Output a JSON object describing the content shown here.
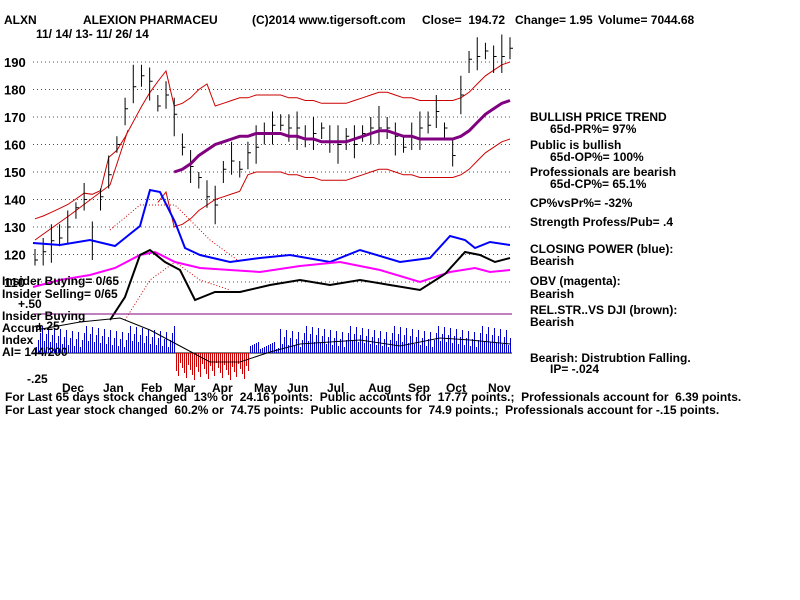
{
  "header": {
    "ticker": "ALXN",
    "company": "ALEXION PHARMACEU",
    "copyright": "(C)2014 www.tigersoft.com",
    "close": "Close=  194.72",
    "change": "Change= 1.95",
    "volume": "Volume= 7044.68",
    "date_range": "11/ 14/ 13- 11/ 26/ 14"
  },
  "right_panel": {
    "bullish_trend": "BULLISH PRICE TREND",
    "pr": "65d-PR%= 97%",
    "public_bullish": "Public is bullish",
    "op": "65d-OP%= 100%",
    "pros_bearish": "Professionals are bearish",
    "cp": "65d-CP%= 65.1%",
    "cpvspr": "CP%vsPr%= -32%",
    "strength": "Strength Profess/Pub= .4",
    "closing_power": "CLOSING POWER (blue):",
    "cp_state": "Bearish",
    "obv": "OBV (magenta):",
    "obv_state": "Bearish",
    "relstr": "REL.STR..VS DJI (brown):",
    "relstr_state": "Bearish",
    "distribution": "Bearish: Distrubtion Falling.",
    "ip": "IP= -.024"
  },
  "left_panel": {
    "insider_buying": "Insider Buying= 0/65",
    "insider_selling": "Insider Selling= 0/65",
    "accum_top": "+.50",
    "insider_buying2": "Insider Buying",
    "accum": "Accum",
    "accum_mid": "+.25",
    "index": "Index",
    "ai": "AI= 144/200",
    "accum_bottom": "-.25"
  },
  "footer": {
    "line1": "For Last 65 days stock changed  13% or  24.16 points:  Public accounts for  17.77 points.;  Professionals account for  6.39 points.",
    "line2": "For Last year stock changed  60.2% or  74.75 points:  Public accounts for  74.9 points.;  Professionals account for -.15 points."
  },
  "colors": {
    "price": "#000000",
    "bands": "#cc0000",
    "ma": "#800080",
    "closing_power": "#0000ff",
    "obv": "#ff00ff",
    "relstr": "#000000",
    "gridline": "#008000",
    "accum_pos": "#0000cc",
    "accum_neg": "#cc0000"
  },
  "chart_data": {
    "type": "line",
    "y_ticks": [
      "190",
      "180",
      "170",
      "160",
      "150",
      "140",
      "130",
      "120",
      "110"
    ],
    "y_tick_values": [
      190,
      180,
      170,
      160,
      150,
      140,
      130,
      120,
      110
    ],
    "ylim": [
      105,
      200
    ],
    "x_ticks": [
      "Dec",
      "Jan",
      "Feb",
      "Mar",
      "Apr",
      "May",
      "Jun",
      "Jul",
      "Aug",
      "Sep",
      "Oct",
      "Nov"
    ],
    "series": [
      {
        "key": "price",
        "values": [
          119,
          121,
          124,
          127,
          130,
          136,
          141,
          125,
          140,
          150,
          160,
          172,
          182,
          185,
          182,
          175,
          178,
          170,
          160,
          152,
          147,
          142,
          138,
          150,
          155,
          151,
          156,
          160,
          164,
          166,
          168,
          166,
          165,
          163,
          164,
          165,
          162,
          160,
          162,
          161,
          164,
          165,
          167,
          166,
          162,
          160,
          163,
          165,
          168,
          172,
          165,
          157,
          178,
          190,
          193,
          194,
          191,
          193,
          195
        ]
      },
      {
        "key": "ma",
        "values": [
          null,
          null,
          null,
          null,
          null,
          null,
          null,
          null,
          null,
          null,
          null,
          null,
          null,
          null,
          null,
          null,
          null,
          150,
          151,
          153,
          156,
          158,
          160,
          161,
          162,
          163,
          163,
          164,
          164,
          164,
          164,
          163,
          163,
          162,
          162,
          161,
          161,
          161,
          161,
          162,
          163,
          164,
          165,
          165,
          164,
          163,
          163,
          162,
          162,
          162,
          162,
          162,
          163,
          165,
          168,
          171,
          173,
          175,
          176
        ]
      }
    ]
  }
}
